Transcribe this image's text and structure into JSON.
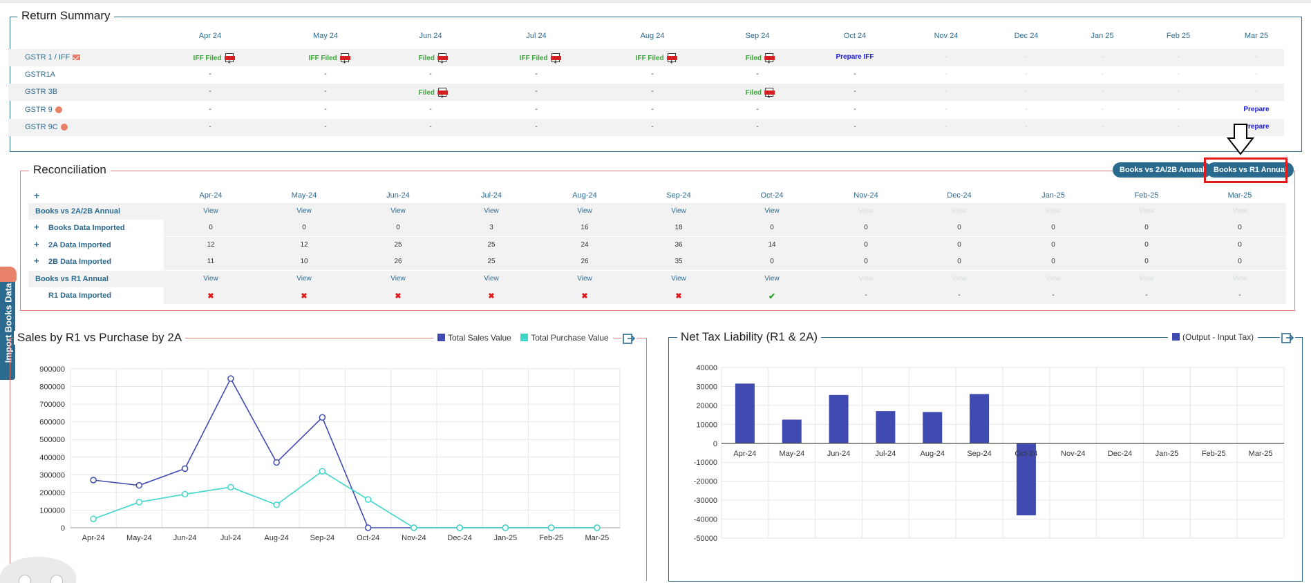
{
  "months_rs": [
    "Apr 24",
    "May 24",
    "Jun 24",
    "Jul 24",
    "Aug 24",
    "Sep 24",
    "Oct 24",
    "Nov 24",
    "Dec 24",
    "Jan 25",
    "Feb 25",
    "Mar 25"
  ],
  "return_summary": {
    "title": "Return Summary",
    "rows": [
      {
        "label": "GSTR 1 / IFF",
        "cells": [
          "IFF Filed",
          "IFF Filed",
          "Filed",
          "IFF Filed",
          "IFF Filed",
          "Filed",
          "Prepare IFF",
          "-",
          "-",
          "-",
          "-",
          "-"
        ]
      },
      {
        "label": "GSTR1A",
        "cells": [
          "-",
          "-",
          "-",
          "-",
          "-",
          "-",
          "-",
          "-",
          "-",
          "-",
          "-",
          "-"
        ]
      },
      {
        "label": "GSTR 3B",
        "cells": [
          "-",
          "-",
          "Filed",
          "-",
          "-",
          "Filed",
          "-",
          "-",
          "-",
          "-",
          "-",
          "-"
        ]
      },
      {
        "label": "GSTR 9",
        "cells": [
          "-",
          "-",
          "-",
          "-",
          "-",
          "-",
          "-",
          "-",
          "-",
          "-",
          "-",
          "Prepare"
        ]
      },
      {
        "label": "GSTR 9C",
        "cells": [
          "-",
          "-",
          "-",
          "-",
          "-",
          "-",
          "-",
          "-",
          "-",
          "-",
          "-",
          "Prepare"
        ]
      }
    ]
  },
  "reconciliation": {
    "title": "Reconciliation",
    "buttons": [
      "Books vs 2A/2B Annual",
      "Books vs R1 Annual"
    ],
    "months": [
      "Apr-24",
      "May-24",
      "Jun-24",
      "Jul-24",
      "Aug-24",
      "Sep-24",
      "Oct-24",
      "Nov-24",
      "Dec-24",
      "Jan-25",
      "Feb-25",
      "Mar-25"
    ],
    "plus": "+",
    "rows": [
      {
        "label": "Books vs 2A/2B Annual",
        "type": "view",
        "cells": [
          "View",
          "View",
          "View",
          "View",
          "View",
          "View",
          "View",
          "View",
          "View",
          "View",
          "View",
          "View"
        ],
        "active_until": 7
      },
      {
        "label": "Books Data Imported",
        "type": "num",
        "cells": [
          "0",
          "0",
          "0",
          "3",
          "16",
          "18",
          "0",
          "0",
          "0",
          "0",
          "0",
          "0"
        ]
      },
      {
        "label": "2A Data Imported",
        "type": "num",
        "cells": [
          "12",
          "12",
          "25",
          "25",
          "24",
          "36",
          "14",
          "0",
          "0",
          "0",
          "0",
          "0"
        ]
      },
      {
        "label": "2B Data Imported",
        "type": "num",
        "cells": [
          "11",
          "10",
          "26",
          "25",
          "26",
          "35",
          "0",
          "0",
          "0",
          "0",
          "0",
          "0"
        ]
      },
      {
        "label": "Books vs R1 Annual",
        "type": "view",
        "cells": [
          "View",
          "View",
          "View",
          "View",
          "View",
          "View",
          "View",
          "View",
          "View",
          "View",
          "View",
          "View"
        ],
        "active_until": 7
      },
      {
        "label": "R1 Data Imported",
        "type": "status",
        "cells": [
          "x",
          "x",
          "x",
          "x",
          "x",
          "x",
          "check",
          "-",
          "-",
          "-",
          "-",
          "-"
        ]
      }
    ]
  },
  "side_tab": {
    "label": "Import Books Data"
  },
  "sales_panel": {
    "title": "Sales by R1 vs Purchase by 2A",
    "legend": [
      "Total Sales Value",
      "Total Purchase Value"
    ]
  },
  "tax_panel": {
    "title": "Net Tax Liability (R1 & 2A)",
    "legend": [
      "(Output - Input Tax)"
    ]
  },
  "colors": {
    "sales": "#3f4bb0",
    "purchase": "#3ed6c8",
    "bar": "#3f4bb0",
    "accent": "#2b6a8f",
    "highlight": "#e01b1b"
  },
  "chart_data": [
    {
      "type": "line",
      "title": "Sales by R1 vs Purchase by 2A",
      "categories": [
        "Apr-24",
        "May-24",
        "Jun-24",
        "Jul-24",
        "Aug-24",
        "Sep-24",
        "Oct-24",
        "Nov-24",
        "Dec-24",
        "Jan-25",
        "Feb-25",
        "Mar-25"
      ],
      "series": [
        {
          "name": "Total Sales Value",
          "values": [
            270000,
            240000,
            335000,
            845000,
            370000,
            625000,
            0,
            0,
            0,
            0,
            0,
            0
          ]
        },
        {
          "name": "Total Purchase Value",
          "values": [
            50000,
            145000,
            190000,
            230000,
            130000,
            320000,
            160000,
            0,
            0,
            0,
            0,
            0
          ]
        }
      ],
      "ylim": [
        0,
        900000
      ],
      "yticks": [
        0,
        100000,
        200000,
        300000,
        400000,
        500000,
        600000,
        700000,
        800000,
        900000
      ],
      "grid": true,
      "legend_position": "top-right"
    },
    {
      "type": "bar",
      "title": "Net Tax Liability (R1 & 2A)",
      "categories": [
        "Apr-24",
        "May-24",
        "Jun-24",
        "Jul-24",
        "Aug-24",
        "Sep-24",
        "Oct-24",
        "Nov-24",
        "Dec-24",
        "Jan-25",
        "Feb-25",
        "Mar-25"
      ],
      "series": [
        {
          "name": "(Output - Input Tax)",
          "values": [
            31500,
            12500,
            25500,
            17000,
            16500,
            26000,
            -38000,
            0,
            0,
            0,
            0,
            0
          ]
        }
      ],
      "ylim": [
        -50000,
        40000
      ],
      "yticks": [
        40000,
        30000,
        20000,
        10000,
        0,
        -10000,
        -20000,
        -30000,
        -40000,
        -50000
      ],
      "grid": true,
      "legend_position": "top-right"
    }
  ]
}
